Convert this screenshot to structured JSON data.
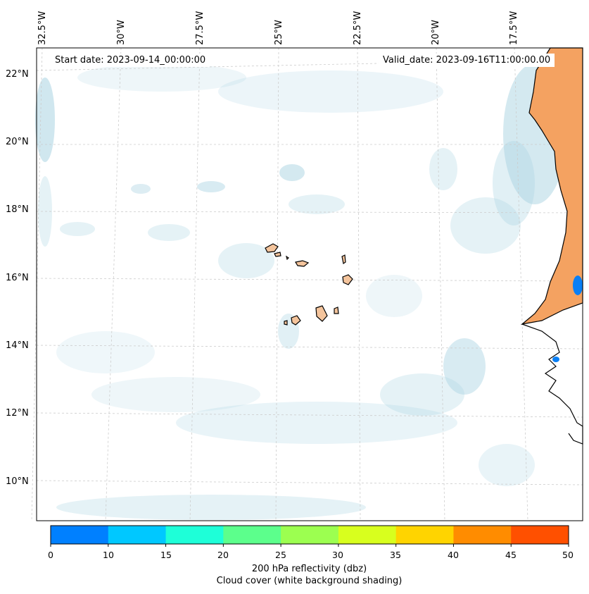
{
  "header": {
    "start_date": "Start date: 2023-09-14_00:00:00",
    "valid_date": "Valid_date: 2023-09-16T11:00:00.00"
  },
  "map": {
    "lon_labels": [
      "32.5°W",
      "30°W",
      "27.5°W",
      "25°W",
      "22.5°W",
      "20°W",
      "17.5°W"
    ],
    "lat_labels": [
      "22°N",
      "20°N",
      "18°N",
      "16°N",
      "14°N",
      "12°N",
      "10°N"
    ],
    "gridlines": "dashed",
    "colors": {
      "cloud": "#a9d3e2",
      "land_reflectivity": "#f4a261",
      "island_fill": "#f4c49c",
      "coastline": "#000000",
      "low_reflectivity": "#0a7ff5"
    }
  },
  "colorbar": {
    "ticks": [
      "0",
      "10",
      "15",
      "20",
      "25",
      "30",
      "35",
      "40",
      "45",
      "50"
    ],
    "colors": [
      "#0080ff",
      "#00c8ff",
      "#1effd8",
      "#5cff8c",
      "#9cff50",
      "#d8ff1e",
      "#ffd400",
      "#ff8c00",
      "#ff5000"
    ],
    "label_line1": "200 hPa reflectivity (dbz)",
    "label_line2": "Cloud cover (white background shading)"
  }
}
